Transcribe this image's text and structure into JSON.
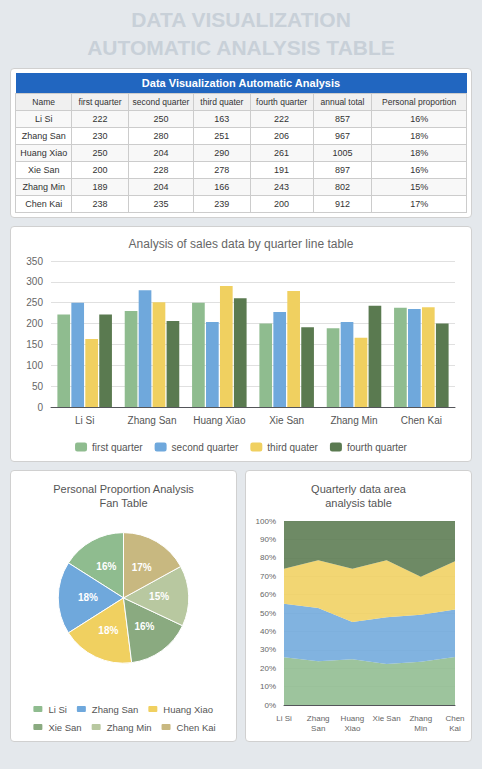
{
  "title": "DATA VISUALIZATION\nAUTOMATIC ANALYSIS TABLE",
  "chart_data": [
    {
      "type": "table",
      "title": "Data Visualization Automatic Analysis",
      "columns": [
        "Name",
        "first quarter",
        "second quarter",
        "third quater",
        "fourth quarter",
        "annual total",
        "Personal proportion"
      ],
      "rows": [
        [
          "Li Si",
          222,
          250,
          163,
          222,
          857,
          "16%"
        ],
        [
          "Zhang San",
          230,
          280,
          251,
          206,
          967,
          "18%"
        ],
        [
          "Huang Xiao",
          250,
          204,
          290,
          261,
          1005,
          "18%"
        ],
        [
          "Xie San",
          200,
          228,
          278,
          191,
          897,
          "16%"
        ],
        [
          "Zhang Min",
          189,
          204,
          166,
          243,
          802,
          "15%"
        ],
        [
          "Chen Kai",
          238,
          235,
          239,
          200,
          912,
          "17%"
        ]
      ]
    },
    {
      "type": "bar",
      "title": "Analysis of sales data by quarter line table",
      "categories": [
        "Li Si",
        "Zhang San",
        "Huang Xiao",
        "Xie San",
        "Zhang Min",
        "Chen Kai"
      ],
      "series": [
        {
          "name": "first quarter",
          "color": "#8fbc8f",
          "values": [
            222,
            230,
            250,
            200,
            189,
            238
          ]
        },
        {
          "name": "second quarter",
          "color": "#6fa8dc",
          "values": [
            250,
            280,
            204,
            228,
            204,
            235
          ]
        },
        {
          "name": "third quater",
          "color": "#f0d060",
          "values": [
            163,
            251,
            290,
            278,
            166,
            239
          ]
        },
        {
          "name": "fourth quarter",
          "color": "#5a7a50",
          "values": [
            222,
            206,
            261,
            191,
            243,
            200
          ]
        }
      ],
      "ylim": [
        0,
        350
      ],
      "yticks": [
        0,
        50,
        100,
        150,
        200,
        250,
        300,
        350
      ],
      "grid": true,
      "legend": "bottom"
    },
    {
      "type": "pie",
      "title": "Personal Proportion Analysis\nFan Table",
      "categories": [
        "Li Si",
        "Zhang San",
        "Huang Xiao",
        "Xie San",
        "Zhang Min",
        "Chen Kai"
      ],
      "values": [
        16,
        18,
        18,
        16,
        15,
        17
      ],
      "value_labels": [
        "16%",
        "18%",
        "18%",
        "16%",
        "15%",
        "17%"
      ],
      "colors": [
        "#8fbc8f",
        "#6fa8dc",
        "#f0d060",
        "#8aaa80",
        "#b8c8a0",
        "#c8b880"
      ],
      "data_labels": true,
      "legend": "bottom"
    },
    {
      "type": "area",
      "title": "Quarterly data area\nanalysis table",
      "categories": [
        "Li Si",
        "Zhang\nSan",
        "Huang\nXiao",
        "Xie San",
        "Zhang\nMin",
        "Chen\nKai"
      ],
      "series": [
        {
          "color": "#8fbc8f",
          "values": [
            25.9043,
            23.7849,
            24.8756,
            22.2965,
            23.56608,
            26.0965
          ]
        },
        {
          "color": "#6fa8dc",
          "values": [
            29.1715,
            28.9555,
            20.2985,
            25.4181,
            25.43641,
            25.7675
          ]
        },
        {
          "color": "#f0d060",
          "values": [
            19.0198,
            25.9566,
            28.8557,
            30.9922,
            20.69825,
            26.2061
          ]
        },
        {
          "color": "#5a7a50",
          "values": [
            25.9043,
            21.303,
            25.9701,
            21.2932,
            30.29925,
            21.9298
          ]
        }
      ],
      "stacked": true,
      "ylim": [
        0,
        100
      ],
      "yticks": [
        {
          "value": 0,
          "label": "0%"
        },
        {
          "value": 10,
          "label": "10%"
        },
        {
          "value": 20,
          "label": "20%"
        },
        {
          "value": 30,
          "label": "30%"
        },
        {
          "value": 40,
          "label": "40%"
        },
        {
          "value": 50,
          "label": "50%"
        },
        {
          "value": 60,
          "label": "60%"
        },
        {
          "value": 70,
          "label": "70%"
        },
        {
          "value": 80,
          "label": "80%"
        },
        {
          "value": 90,
          "label": "90%"
        },
        {
          "value": 100,
          "label": "100%"
        }
      ],
      "grid": true
    }
  ]
}
